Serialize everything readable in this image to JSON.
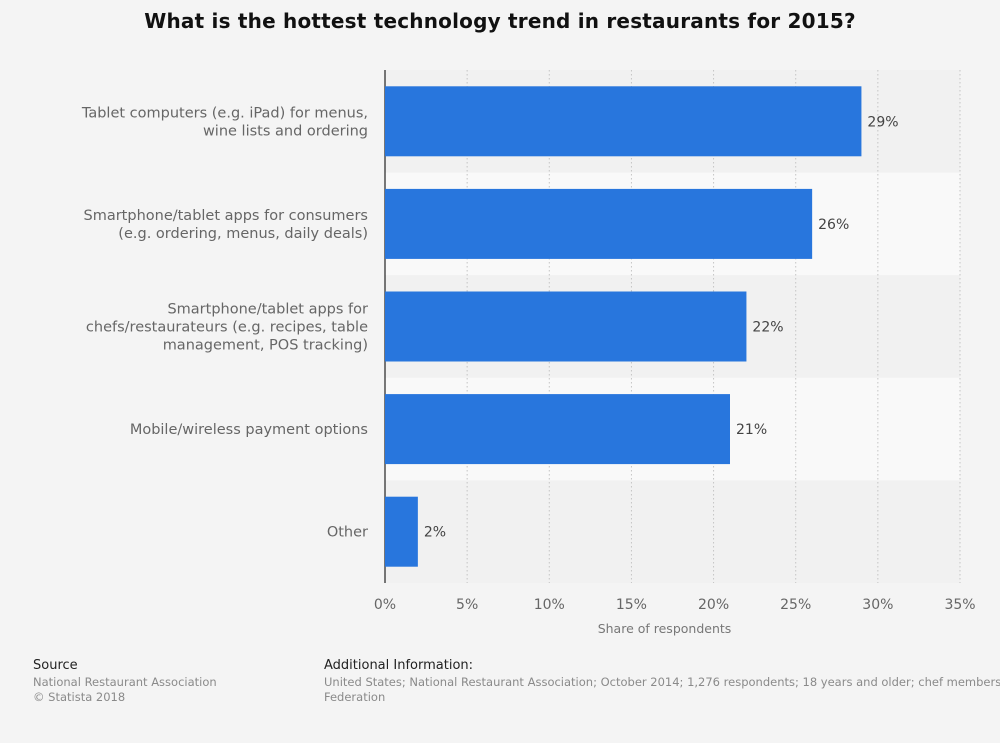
{
  "title": "What is the hottest technology trend in restaurants for 2015?",
  "chart_data": {
    "type": "bar",
    "orientation": "horizontal",
    "categories": [
      "Tablet computers (e.g. iPad) for menus,\nwine lists and ordering",
      "Smartphone/tablet apps for consumers\n(e.g. ordering, menus, daily deals)",
      "Smartphone/tablet apps for\nchefs/restaurateurs (e.g. recipes, table\nmanagement, POS tracking)",
      "Mobile/wireless payment options",
      "Other"
    ],
    "values": [
      29,
      26,
      22,
      21,
      2
    ],
    "value_labels": [
      "29%",
      "26%",
      "22%",
      "21%",
      "2%"
    ],
    "xlabel": "Share of respondents",
    "xlim": [
      0,
      35
    ],
    "xticks": [
      "0%",
      "5%",
      "10%",
      "15%",
      "20%",
      "25%",
      "30%",
      "35%"
    ],
    "grid": true,
    "bar_color": "#2876dd"
  },
  "footer": {
    "source_heading": "Source",
    "source_lines": [
      "National Restaurant Association",
      "© Statista 2018"
    ],
    "info_heading": "Additional Information:",
    "info_lines": [
      "United States; National Restaurant Association; October 2014; 1,276 respondents; 18 years and older; chef members of the American Culinary",
      "Federation"
    ]
  }
}
